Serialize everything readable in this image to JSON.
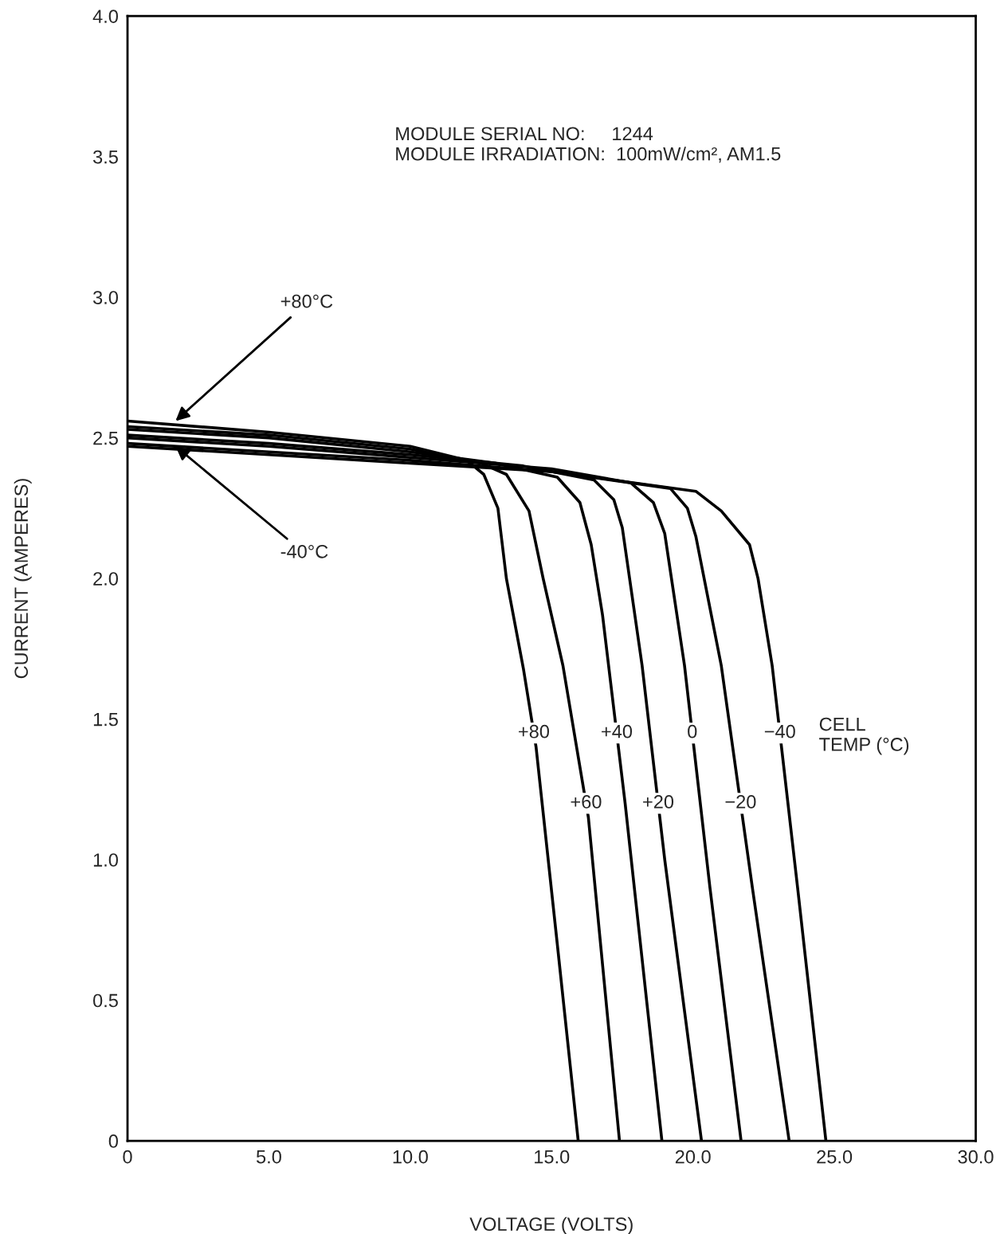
{
  "chart_data": {
    "type": "line",
    "xlabel": "VOLTAGE (VOLTS)",
    "ylabel": "CURRENT (AMPERES)",
    "xlim": [
      0,
      30
    ],
    "ylim": [
      0,
      4
    ],
    "xticks": [
      0,
      {
        "value": 5,
        "label": "5.0"
      },
      {
        "value": 10,
        "label": "10.0"
      },
      {
        "value": 15,
        "label": "15.0"
      },
      {
        "value": 20,
        "label": "20.0"
      },
      {
        "value": 25,
        "label": "25.0"
      },
      {
        "value": 30,
        "label": "30.0"
      }
    ],
    "yticks": [
      0,
      0.5,
      {
        "value": 1,
        "label": "1.0"
      },
      1.5,
      {
        "value": 2,
        "label": "2.0"
      },
      2.5,
      {
        "value": 3,
        "label": "3.0"
      },
      3.5,
      {
        "value": 4,
        "label": "4.0"
      }
    ],
    "grid": false,
    "legend": false,
    "marker": "none",
    "line_style": "solid",
    "series": [
      {
        "name": "+80",
        "color": "#000000",
        "x": [
          0,
          5,
          10,
          12,
          12.6,
          13.1,
          13.4,
          14.0,
          14.45,
          15.2,
          15.94
        ],
        "values": [
          2.56,
          2.52,
          2.47,
          2.42,
          2.37,
          2.25,
          2.0,
          1.68,
          1.4,
          0.7,
          0
        ]
      },
      {
        "name": "+60",
        "color": "#000000",
        "x": [
          0,
          5,
          10,
          12.5,
          13.4,
          14.2,
          14.7,
          15.4,
          16.3,
          17.4
        ],
        "values": [
          2.54,
          2.51,
          2.46,
          2.41,
          2.37,
          2.24,
          2.0,
          1.69,
          1.15,
          0
        ]
      },
      {
        "name": "+40",
        "color": "#000000",
        "x": [
          0,
          5,
          10,
          13,
          15.2,
          16.0,
          16.4,
          16.8,
          17.6,
          18.9
        ],
        "values": [
          2.53,
          2.5,
          2.45,
          2.41,
          2.36,
          2.27,
          2.12,
          1.87,
          1.2,
          0
        ]
      },
      {
        "name": "+20",
        "color": "#000000",
        "x": [
          0,
          5,
          10,
          14,
          16.5,
          17.2,
          17.5,
          18.2,
          19.0,
          20.3
        ],
        "values": [
          2.51,
          2.48,
          2.44,
          2.4,
          2.35,
          2.28,
          2.18,
          1.69,
          1.0,
          0
        ]
      },
      {
        "name": "0",
        "color": "#000000",
        "x": [
          0,
          5,
          10,
          15,
          17.8,
          18.6,
          19.0,
          19.7,
          20.6,
          21.7
        ],
        "values": [
          2.5,
          2.47,
          2.43,
          2.39,
          2.34,
          2.27,
          2.16,
          1.69,
          0.9,
          0
        ]
      },
      {
        "name": "−20",
        "color": "#000000",
        "x": [
          0,
          5,
          10,
          15,
          19.2,
          19.8,
          20.1,
          21.0,
          22.1,
          23.4
        ],
        "values": [
          2.48,
          2.45,
          2.42,
          2.38,
          2.32,
          2.25,
          2.15,
          1.69,
          0.9,
          0
        ]
      },
      {
        "name": "−40",
        "color": "#000000",
        "x": [
          0,
          5,
          10,
          15,
          20.1,
          21.0,
          22.0,
          22.3,
          22.8,
          23.7,
          24.7
        ],
        "values": [
          2.47,
          2.44,
          2.41,
          2.38,
          2.31,
          2.24,
          2.12,
          2.0,
          1.69,
          0.9,
          0
        ]
      }
    ],
    "annotations": [
      "MODULE SERIAL NO:     1244\nMODULE IRRADIATION:  100mW/cm², AM1.5",
      "CELL\nTEMP (°C)",
      {
        "text": "+80°C",
        "x": 1.7,
        "y": 2.56
      },
      {
        "text": "-40°C",
        "x": 1.7,
        "y": 2.47
      }
    ]
  }
}
